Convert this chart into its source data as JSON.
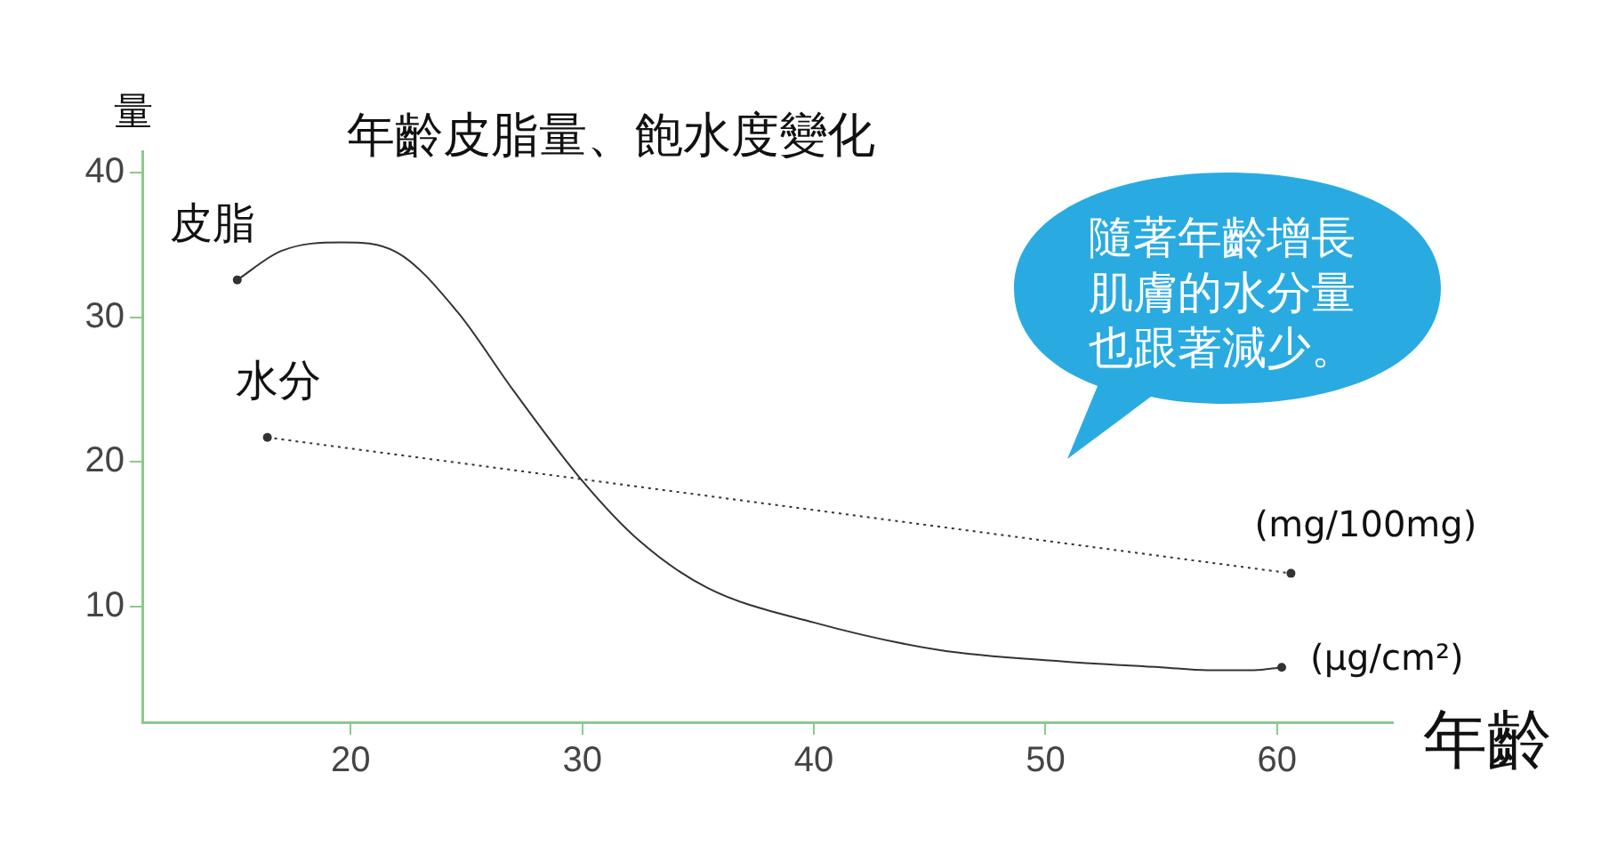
{
  "chart_data": {
    "type": "line",
    "title": "年齡皮脂量、飽水度變化",
    "xlabel": "年齡",
    "ylabel": "量",
    "xlim": [
      11,
      65
    ],
    "xticks": [
      20,
      30,
      40,
      50,
      60
    ],
    "ylim": [
      2,
      41.5
    ],
    "yticks": [
      10,
      20,
      30,
      40
    ],
    "grid": false,
    "legend": false,
    "series": [
      {
        "name": "皮脂",
        "color": "#333333",
        "line_style": "solid",
        "marker": "none",
        "x": [
          15.1,
          17,
          19.6,
          22,
          24.6,
          27,
          30,
          32.5,
          35.4,
          40,
          45.4,
          50.8,
          55,
          57,
          59,
          60.2
        ],
        "values": [
          32.6,
          34.6,
          35.2,
          34.5,
          30.4,
          25,
          18.7,
          14.5,
          11.3,
          8.9,
          7.0,
          6.2,
          5.8,
          5.6,
          5.6,
          5.8
        ]
      },
      {
        "type": "scatter",
        "color": "#333333",
        "marker": "circle",
        "x": [
          15.1,
          60.2
        ],
        "values": [
          32.6,
          5.8
        ]
      },
      {
        "name": "水分",
        "color": "#333333",
        "line_style": "dotted",
        "marker": "circle",
        "x": [
          16.4,
          60.6
        ],
        "values": [
          21.7,
          12.3
        ]
      }
    ],
    "annotations": [
      {
        "text": "(mg/100mg)",
        "x": 60.6,
        "y": 12.3
      },
      {
        "text": "(μg/cm²)",
        "x": 60.2,
        "y": 5.8
      },
      "隨著年齡增長肌膚的水分量也跟著減少。"
    ]
  }
}
